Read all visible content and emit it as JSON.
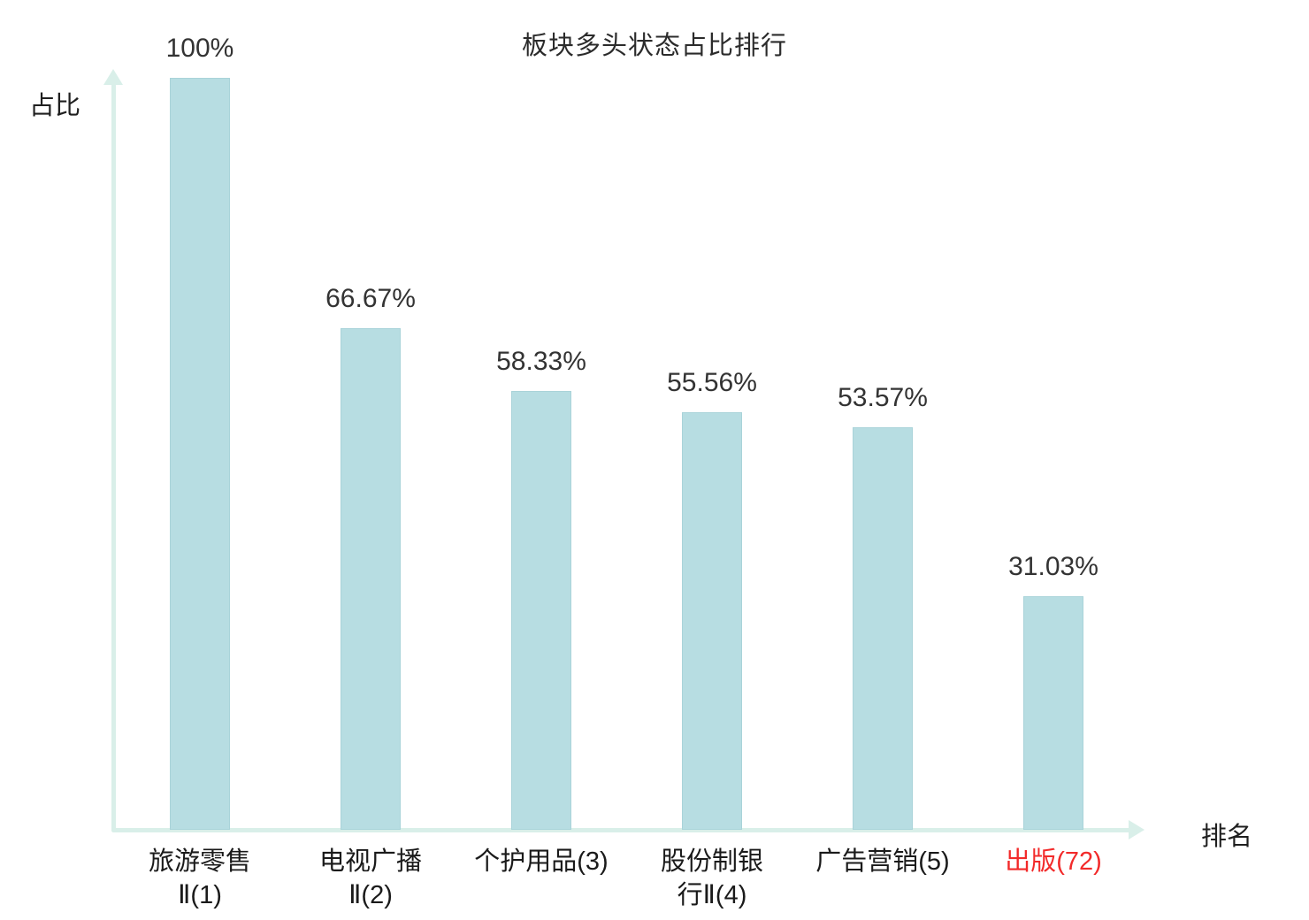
{
  "title": "板块多头状态占比排行",
  "axes": {
    "y_label": "占比",
    "x_label": "排名"
  },
  "chart_data": {
    "type": "bar",
    "title": "板块多头状态占比排行",
    "xlabel": "排名",
    "ylabel": "占比",
    "ylim": [
      0,
      100
    ],
    "grid": false,
    "legend": "none",
    "categories": [
      "旅游零售Ⅱ(1)",
      "电视广播Ⅱ(2)",
      "个护用品(3)",
      "股份制银行Ⅱ(4)",
      "广告营销(5)",
      "出版(72)"
    ],
    "values": [
      100,
      66.67,
      58.33,
      55.56,
      53.57,
      31.03
    ],
    "bars": [
      {
        "category": "旅游零售\nⅡ(1)",
        "value": 100,
        "value_label": "100%"
      },
      {
        "category": "电视广播\nⅡ(2)",
        "value": 66.67,
        "value_label": "66.67%"
      },
      {
        "category": "个护用品(3)",
        "value": 58.33,
        "value_label": "58.33%"
      },
      {
        "category": "股份制银\n行Ⅱ(4)",
        "value": 55.56,
        "value_label": "55.56%"
      },
      {
        "category": "广告营销(5)",
        "value": 53.57,
        "value_label": "53.57%"
      },
      {
        "category": "出版(72)",
        "value": 31.03,
        "value_label": "31.03%",
        "category_color": "#f22a2a"
      }
    ],
    "colors": {
      "bar_fill": "#b7dde2",
      "bar_border": "#a9d3d9",
      "axis": "#d9efe9",
      "value_text": "#333333",
      "category_text": "#1a1a1a",
      "highlight": "#f22a2a"
    }
  }
}
